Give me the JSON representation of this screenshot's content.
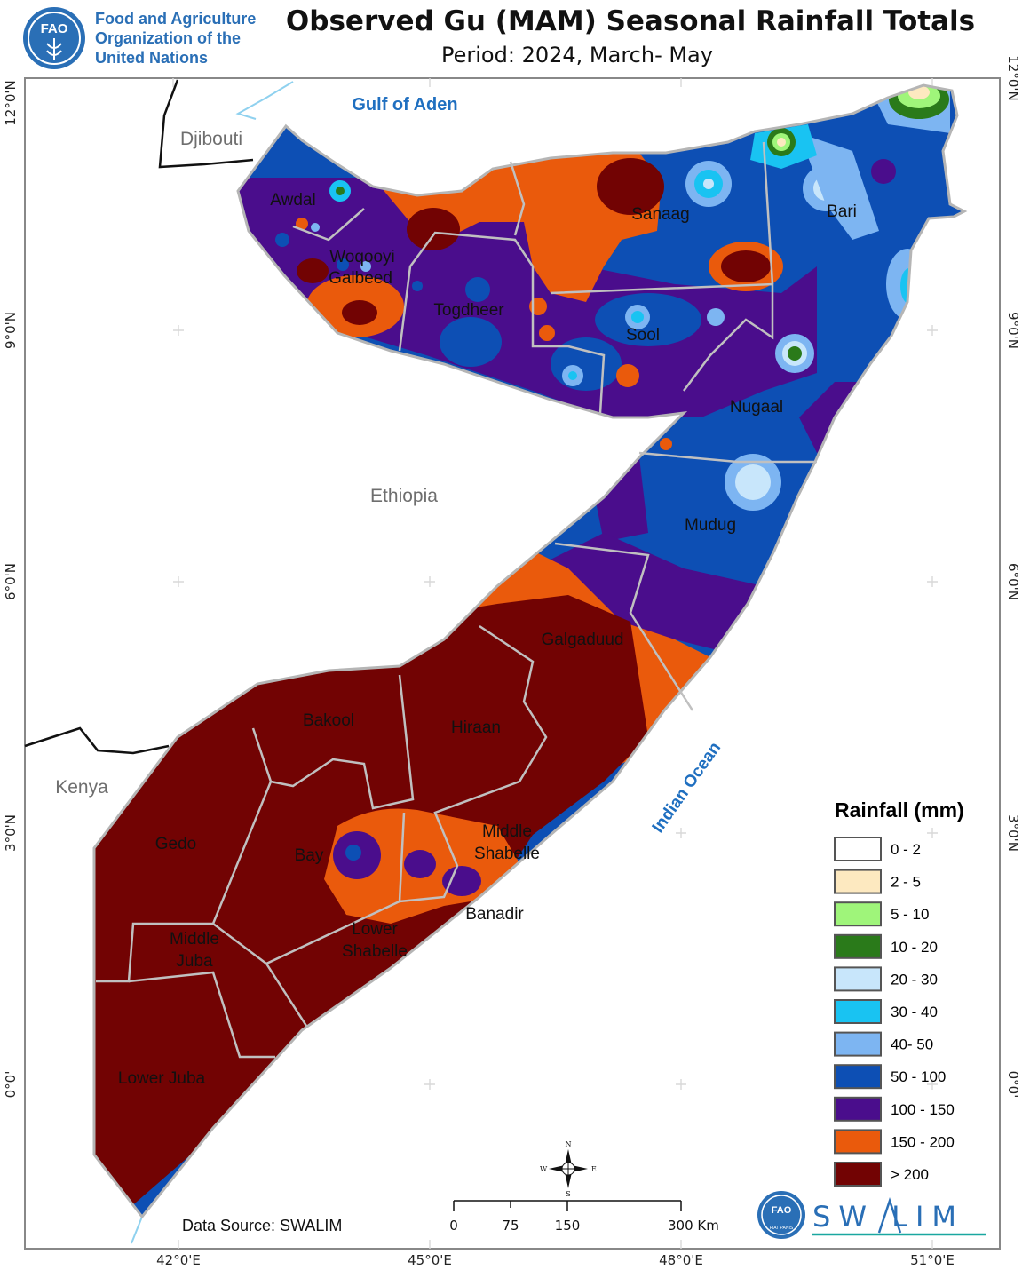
{
  "header": {
    "org_line1": "Food and Agriculture",
    "org_line2": "Organization of the",
    "org_line3": "United Nations",
    "title": "Observed Gu (MAM) Seasonal Rainfall Totals",
    "period": "Period: 2024, March- May"
  },
  "logo": {
    "fao_letters": "FAO",
    "fiat_panis": "FIAT PANIS",
    "swalim_text": "SW LIM"
  },
  "labels": {
    "water": [
      "Gulf of Aden",
      "Indian Ocean"
    ],
    "countries": [
      "Djibouti",
      "Ethiopia",
      "Kenya"
    ],
    "regions": [
      "Awdal",
      "Woqooyi",
      "Galbeed",
      "Togdheer",
      "Sanaag",
      "Bari",
      "Sool",
      "Nugaal",
      "Mudug",
      "Galgaduud",
      "Hiraan",
      "Bakool",
      "Gedo",
      "Bay",
      "Middle",
      "Shabelle",
      "Banadir",
      "Lower",
      "Shabelle",
      "Middle",
      "Juba",
      "Lower Juba"
    ]
  },
  "graticule": {
    "lat_labels": [
      "12°0'N",
      "9°0'N",
      "6°0'N",
      "3°0'N",
      "0°0'"
    ],
    "lon_labels": [
      "42°0'E",
      "45°0'E",
      "48°0'E",
      "51°0'E"
    ]
  },
  "legend": {
    "title": "Rainfall (mm)",
    "classes": [
      {
        "label": "0 - 2",
        "color": "#ffffff"
      },
      {
        "label": "2 - 5",
        "color": "#fde9c0"
      },
      {
        "label": "5 - 10",
        "color": "#9ff57a"
      },
      {
        "label": "10 - 20",
        "color": "#2a7a1a"
      },
      {
        "label": "20 - 30",
        "color": "#c8e6fb"
      },
      {
        "label": "30 - 40",
        "color": "#19c3f2"
      },
      {
        "label": "40- 50",
        "color": "#7db5f2"
      },
      {
        "label": "50 - 100",
        "color": "#0d4fb4"
      },
      {
        "label": "100 - 150",
        "color": "#4a0d8c"
      },
      {
        "label": "150 - 200",
        "color": "#ea5a0c"
      },
      {
        "label": "> 200",
        "color": "#720303"
      }
    ]
  },
  "scalebar": {
    "ticks": [
      "0",
      "75",
      "150",
      "300 Km"
    ]
  },
  "compass": {
    "n": "N",
    "s": "S",
    "e": "E",
    "w": "W"
  },
  "source": "Data Source: SWALIM"
}
